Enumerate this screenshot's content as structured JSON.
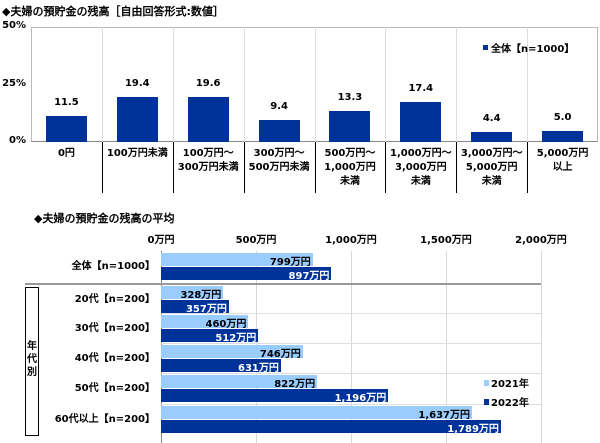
{
  "chart_data": [
    {
      "type": "bar",
      "title": "◆夫婦の預貯金の残高［自由回答形式:数値］",
      "categories": [
        "0円",
        "100万円未満",
        "100万円～\n300万円未満",
        "300万円～\n500万円未満",
        "500万円～\n1,000万円\n未満",
        "1,000万円～\n3,000万円\n未満",
        "3,000万円～\n5,000万円\n未満",
        "5,000万円\n以上"
      ],
      "series": [
        {
          "name": "全体【n=1000】",
          "values": [
            11.5,
            19.4,
            19.6,
            9.4,
            13.3,
            17.4,
            4.4,
            5.0
          ],
          "color": "#003399"
        }
      ],
      "value_labels": [
        "11.5",
        "19.4",
        "19.6",
        "9.4",
        "13.3",
        "17.4",
        "4.4",
        "5.0"
      ],
      "ylim": [
        0,
        50
      ],
      "yticks": [
        "0%",
        "25%",
        "50%"
      ],
      "legend": "top-right"
    },
    {
      "type": "bar",
      "orientation": "horizontal",
      "title": "◆夫婦の預貯金の残高の平均",
      "group_label": "年代別",
      "categories": [
        "全体【n=1000】",
        "20代【n=200】",
        "30代【n=200】",
        "40代【n=200】",
        "50代【n=200】",
        "60代以上【n=200】"
      ],
      "series": [
        {
          "name": "2021年",
          "values": [
            799,
            328,
            460,
            746,
            822,
            1637
          ],
          "labels": [
            "799万円",
            "328万円",
            "460万円",
            "746万円",
            "822万円",
            "1,637万円"
          ],
          "color": "#99ccff"
        },
        {
          "name": "2022年",
          "values": [
            897,
            357,
            512,
            631,
            1196,
            1789
          ],
          "labels": [
            "897万円",
            "357万円",
            "512万円",
            "631万円",
            "1,196万円",
            "1,789万円"
          ],
          "color": "#003399"
        }
      ],
      "xlim": [
        0,
        2000
      ],
      "xticks": [
        "0万円",
        "500万円",
        "1,000万円",
        "1,500万円",
        "2,000万円"
      ],
      "legend": "bottom-right"
    }
  ]
}
